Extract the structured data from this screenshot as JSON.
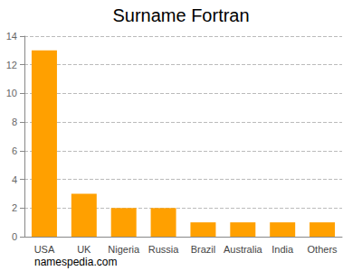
{
  "chart_data": {
    "type": "bar",
    "title": "Surname Fortran",
    "categories": [
      "USA",
      "UK",
      "Nigeria",
      "Russia",
      "Brazil",
      "Australia",
      "India",
      "Others"
    ],
    "values": [
      13,
      3,
      2,
      2,
      1,
      1,
      1,
      1
    ],
    "color": "#ffa000",
    "ylim": [
      0,
      14
    ],
    "yticks": [
      0,
      2,
      4,
      6,
      8,
      10,
      12,
      14
    ],
    "grid": true,
    "annotations": [
      "namespedia.com"
    ]
  }
}
